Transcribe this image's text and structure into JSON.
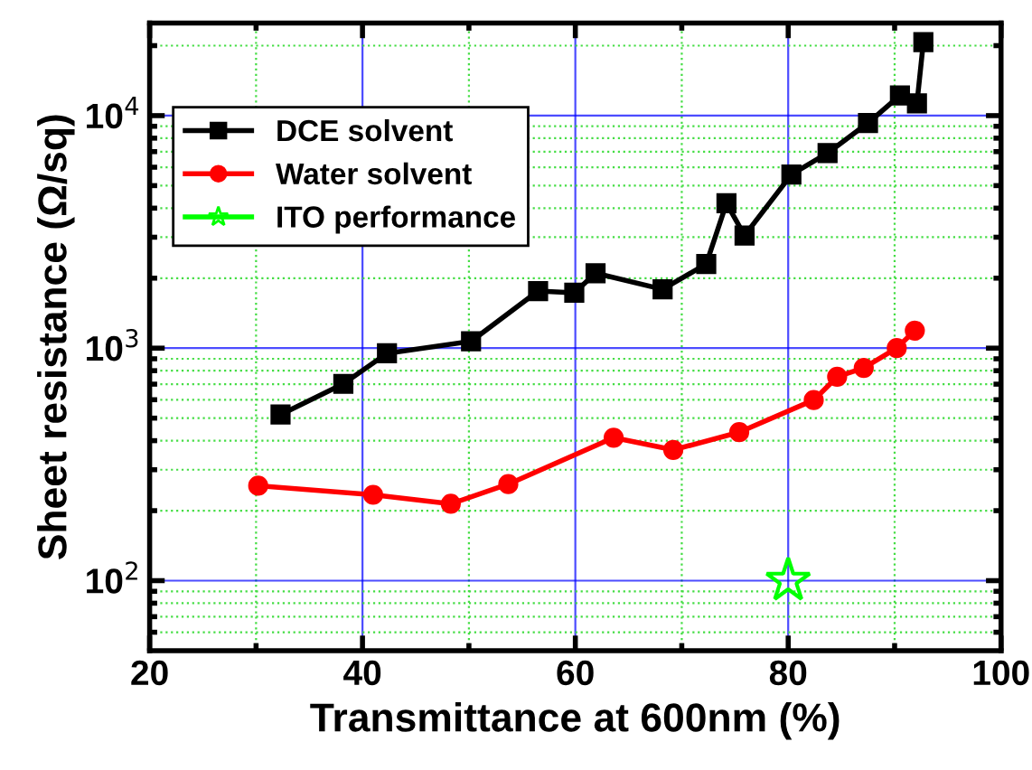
{
  "chart_data": {
    "type": "line",
    "xlabel": "Transmittance at 600nm (%)",
    "ylabel": "Sheet resistance (Ω/sq)",
    "log": "y",
    "xlim": [
      20,
      100
    ],
    "xticks": [
      20,
      {
        "value": 30,
        "label": null
      },
      40,
      {
        "value": 50,
        "label": null
      },
      60,
      {
        "value": 70,
        "label": null
      },
      80,
      {
        "value": 90,
        "label": null
      },
      100
    ],
    "ylim": [
      50,
      25000
    ],
    "yticks": [
      {
        "value": 60,
        "label": null
      },
      {
        "value": 70,
        "label": null
      },
      {
        "value": 80,
        "label": null
      },
      {
        "value": 90,
        "label": null
      },
      {
        "value": 100,
        "label": "10$^{2}$"
      },
      {
        "value": 200,
        "label": null
      },
      {
        "value": 300,
        "label": null
      },
      {
        "value": 400,
        "label": null
      },
      {
        "value": 500,
        "label": null
      },
      {
        "value": 600,
        "label": null
      },
      {
        "value": 700,
        "label": null
      },
      {
        "value": 800,
        "label": null
      },
      {
        "value": 900,
        "label": null
      },
      {
        "value": 1000,
        "label": "10$^{3}$"
      },
      {
        "value": 2000,
        "label": null
      },
      {
        "value": 3000,
        "label": null
      },
      {
        "value": 4000,
        "label": null
      },
      {
        "value": 5000,
        "label": null
      },
      {
        "value": 6000,
        "label": null
      },
      {
        "value": 7000,
        "label": null
      },
      {
        "value": 8000,
        "label": null
      },
      {
        "value": 9000,
        "label": null
      },
      {
        "value": 10000,
        "label": "10$^{4}$"
      },
      {
        "value": 20000,
        "label": null
      }
    ],
    "grid": true,
    "legend": "top left",
    "series": [
      {
        "name": "DCE solvent",
        "color": "#000000",
        "marker": "square",
        "x": [
          32.3,
          38.2,
          42.3,
          50.2,
          56.5,
          59.9,
          61.9,
          68.2,
          72.3,
          74.2,
          75.9,
          80.3,
          83.7,
          87.5,
          90.5,
          92.1,
          92.7
        ],
        "values": [
          518,
          702,
          950,
          1070,
          1760,
          1730,
          2100,
          1790,
          2300,
          4200,
          3050,
          5580,
          6900,
          9300,
          12200,
          11300,
          20700
        ]
      },
      {
        "name": "Water solvent",
        "color": "#ff0000",
        "marker": "circle",
        "x": [
          30.2,
          41.0,
          48.3,
          53.7,
          63.6,
          69.2,
          75.4,
          82.4,
          84.6,
          87.1,
          90.2,
          91.9
        ],
        "values": [
          256,
          234,
          214,
          260,
          412,
          365,
          435,
          598,
          753,
          822,
          1000,
          1190
        ]
      },
      {
        "name": "ITO performance",
        "color": "#00ff00",
        "marker": "star",
        "x": [
          80
        ],
        "values": [
          100
        ]
      }
    ]
  }
}
